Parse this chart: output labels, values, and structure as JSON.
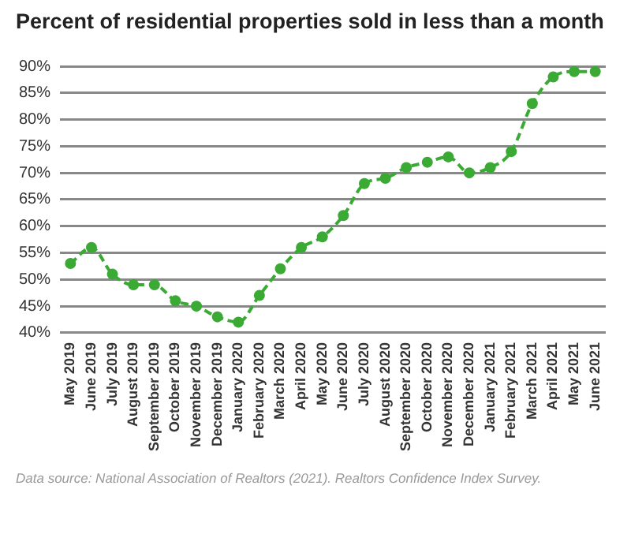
{
  "chart_data": {
    "type": "line",
    "title": "Percent of residential properties sold in less than a month",
    "categories": [
      "May 2019",
      "June 2019",
      "July 2019",
      "August 2019",
      "September 2019",
      "October 2019",
      "November 2019",
      "December 2019",
      "January 2020",
      "February 2020",
      "March 2020",
      "April 2020",
      "May 2020",
      "June 2020",
      "July 2020",
      "August 2020",
      "September 2020",
      "October 2020",
      "November 2020",
      "December 2020",
      "January 2021",
      "February 2021",
      "March 2021",
      "April 2021",
      "May 2021",
      "June 2021"
    ],
    "series": [
      {
        "color": "#3aaa35",
        "values": [
          53,
          56,
          51,
          49,
          49,
          46,
          45,
          43,
          42,
          47,
          52,
          56,
          58,
          62,
          68,
          69,
          71,
          72,
          73,
          70,
          71,
          74,
          83,
          88,
          89,
          89
        ]
      }
    ],
    "ylim": [
      40,
      90
    ],
    "yticks": [
      {
        "value": 40,
        "label": "40%"
      },
      {
        "value": 45,
        "label": "45%"
      },
      {
        "value": 50,
        "label": "50%"
      },
      {
        "value": 55,
        "label": "55%"
      },
      {
        "value": 60,
        "label": "60%"
      },
      {
        "value": 65,
        "label": "65%"
      },
      {
        "value": 70,
        "label": "70%"
      },
      {
        "value": 75,
        "label": "75%"
      },
      {
        "value": 80,
        "label": "80%"
      },
      {
        "value": 85,
        "label": "85%"
      },
      {
        "value": 90,
        "label": "90%"
      }
    ],
    "grid": "y",
    "marker": "circle",
    "line_style": "dashed",
    "legend": false,
    "annotations": [
      "Data source: National Association of Realtors (2021). Realtors Confidence Index Survey."
    ]
  }
}
